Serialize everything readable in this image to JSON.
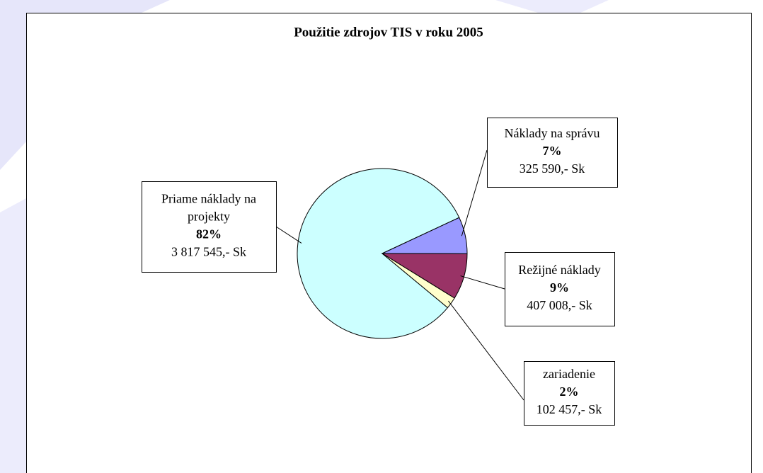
{
  "chart_data": {
    "type": "pie",
    "title": "Použitie zdrojov TIS v roku 2005",
    "categories": [
      "Priame náklady na projekty",
      "Náklady na správu",
      "Režijné náklady",
      "zariadenie"
    ],
    "values": [
      82,
      7,
      9,
      2
    ],
    "value_labels": [
      "82%",
      "7%",
      "9%",
      "2%"
    ],
    "amounts": [
      3817545,
      325590,
      407008,
      102457
    ],
    "amount_labels": [
      "3 817 545,- Sk",
      "325 590,- Sk",
      "407 008,- Sk",
      "102 457,- Sk"
    ],
    "colors": [
      "#ccffff",
      "#9999ff",
      "#993366",
      "#ffffcc"
    ]
  }
}
